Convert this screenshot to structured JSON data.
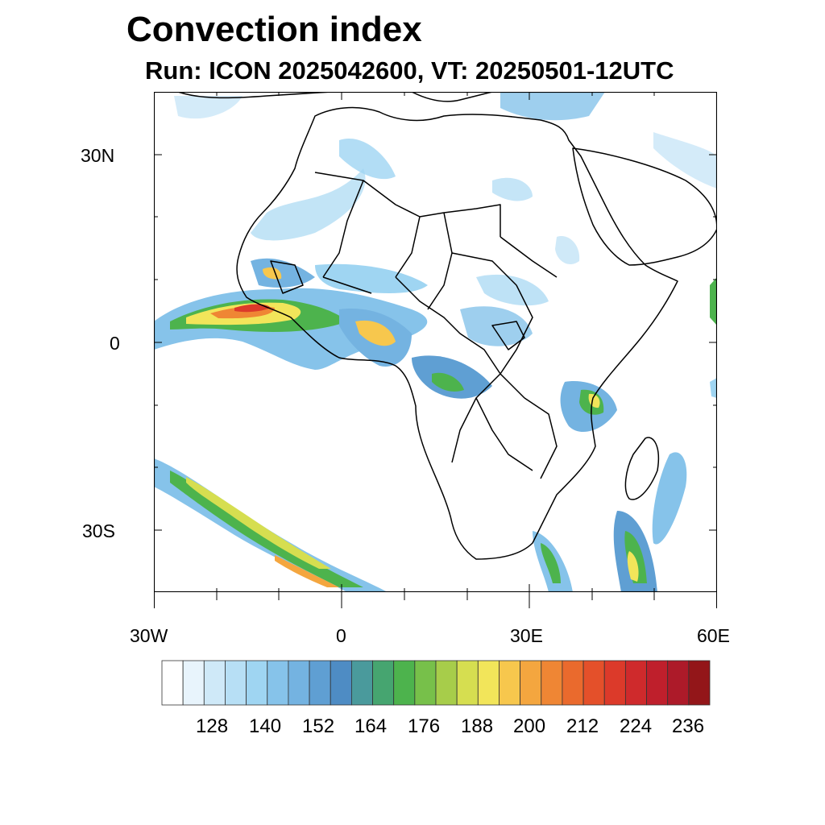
{
  "figure": {
    "title": "Convection index",
    "subtitle": "Run: ICON 2025042600,  VT: 20250501-12UTC"
  },
  "map": {
    "region": "Africa",
    "lat_labels": [
      "30N",
      "0",
      "30S"
    ],
    "lon_labels": [
      "30W",
      "0",
      "30E",
      "60E"
    ],
    "lon_range": [
      -30,
      60
    ],
    "lat_range": [
      -40,
      40
    ]
  },
  "colorbar": {
    "labels": [
      "128",
      "140",
      "152",
      "164",
      "176",
      "188",
      "200",
      "212",
      "224",
      "236"
    ],
    "colors": [
      "#ffffff",
      "#e8f4fc",
      "#cfe9f8",
      "#b7dff5",
      "#9fd5f2",
      "#86c3ea",
      "#74b3e1",
      "#5f9fd3",
      "#4e8cc4",
      "#4a9a9c",
      "#46a570",
      "#4db34d",
      "#77c04a",
      "#a7cd4a",
      "#d6de50",
      "#f2e55a",
      "#f7c74d",
      "#f4a63f",
      "#ef8634",
      "#ea6a2d",
      "#e4502a",
      "#dc3a2a",
      "#cf2a2c",
      "#bf1f2c",
      "#ad1a29",
      "#931619"
    ]
  }
}
